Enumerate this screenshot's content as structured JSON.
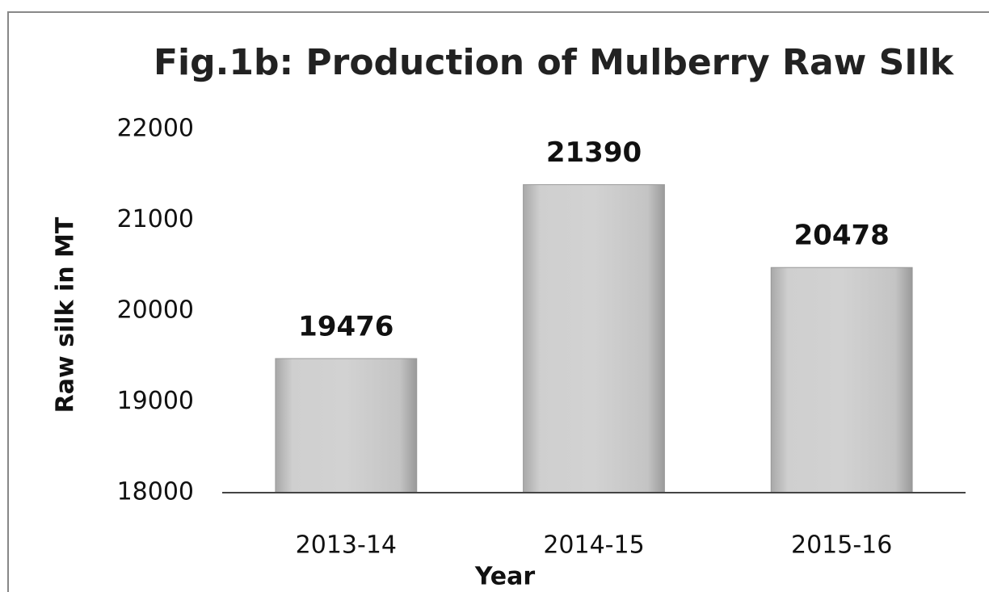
{
  "chart_data": {
    "type": "bar",
    "title": "Fig.1b: Production of Mulberry Raw SIlk",
    "x_label": "Year",
    "y_label": "Raw silk in MT",
    "categories": [
      "2013-14",
      "2014-15",
      "2015-16"
    ],
    "values": [
      19476,
      21390,
      20478
    ],
    "color": "#c8c8c8",
    "ylim": [
      18000,
      22000
    ],
    "yticks": [
      18000,
      19000,
      20000,
      21000,
      22000
    ],
    "grid": false
  }
}
